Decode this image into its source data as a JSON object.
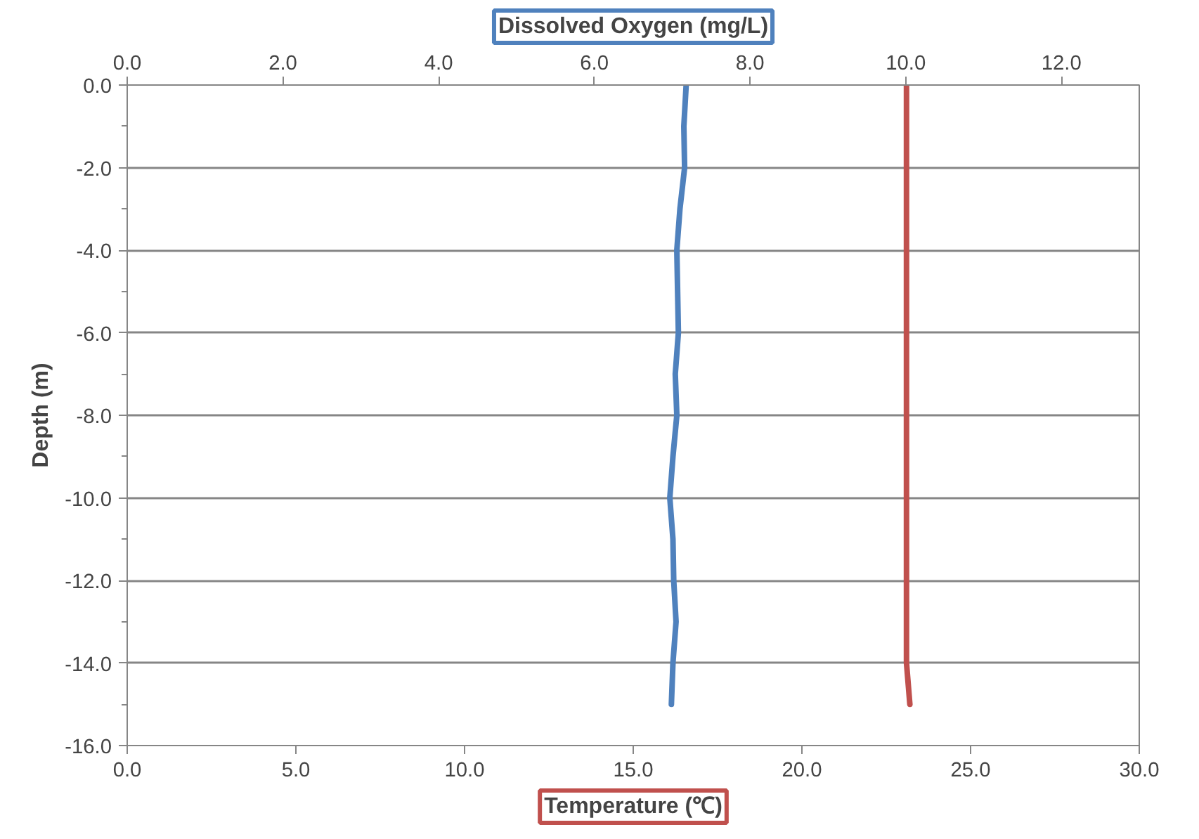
{
  "chart_data": {
    "type": "line",
    "xlabel": "Temperature (℃)",
    "x2label": "Dissolved Oxygen (mg/L)",
    "ylabel": "Depth (m)",
    "xlim": [
      0,
      30
    ],
    "xticks": [
      {
        "value": 0,
        "label": "0.0"
      },
      {
        "value": 5,
        "label": "5.0"
      },
      {
        "value": 10,
        "label": "10.0"
      },
      {
        "value": 15,
        "label": "15.0"
      },
      {
        "value": 20,
        "label": "20.0"
      },
      {
        "value": 25,
        "label": "25.0"
      },
      {
        "value": 30,
        "label": "30.0"
      }
    ],
    "x2lim": [
      0,
      13
    ],
    "x2ticks": [
      {
        "value": 0,
        "label": "0.0"
      },
      {
        "value": 2,
        "label": "2.0"
      },
      {
        "value": 4,
        "label": "4.0"
      },
      {
        "value": 6,
        "label": "6.0"
      },
      {
        "value": 8,
        "label": "8.0"
      },
      {
        "value": 10,
        "label": "10.0"
      },
      {
        "value": 12,
        "label": "12.0"
      }
    ],
    "ylim": [
      -16,
      0
    ],
    "yticks": [
      {
        "value": 0,
        "label": "0.0"
      },
      {
        "value": -2,
        "label": "-2.0"
      },
      {
        "value": -4,
        "label": "-4.0"
      },
      {
        "value": -6,
        "label": "-6.0"
      },
      {
        "value": -8,
        "label": "-8.0"
      },
      {
        "value": -10,
        "label": "-10.0"
      },
      {
        "value": -12,
        "label": "-12.0"
      },
      {
        "value": -14,
        "label": "-14.0"
      },
      {
        "value": -16,
        "label": "-16.0"
      }
    ],
    "grid": "y",
    "marker": "none",
    "line_style": "solid",
    "series": [
      {
        "axis": "x2",
        "color": "#4f81bd",
        "x": [
          7.18,
          7.15,
          7.16,
          7.1,
          7.06,
          7.07,
          7.08,
          7.04,
          7.06,
          7.01,
          6.97,
          7.01,
          7.02,
          7.05,
          7.01,
          6.99
        ],
        "values": [
          0,
          -1,
          -2,
          -3,
          -4,
          -5,
          -6,
          -7,
          -8,
          -9,
          -10,
          -11,
          -12,
          -13,
          -14,
          -15
        ]
      },
      {
        "color": "#c0504d",
        "x": [
          23.1,
          23.1,
          23.1,
          23.1,
          23.1,
          23.1,
          23.1,
          23.1,
          23.1,
          23.1,
          23.1,
          23.1,
          23.1,
          23.1,
          23.1,
          23.2
        ],
        "values": [
          0,
          -1,
          -2,
          -3,
          -4,
          -5,
          -6,
          -7,
          -8,
          -9,
          -10,
          -11,
          -12,
          -13,
          -14,
          -15
        ]
      }
    ]
  }
}
